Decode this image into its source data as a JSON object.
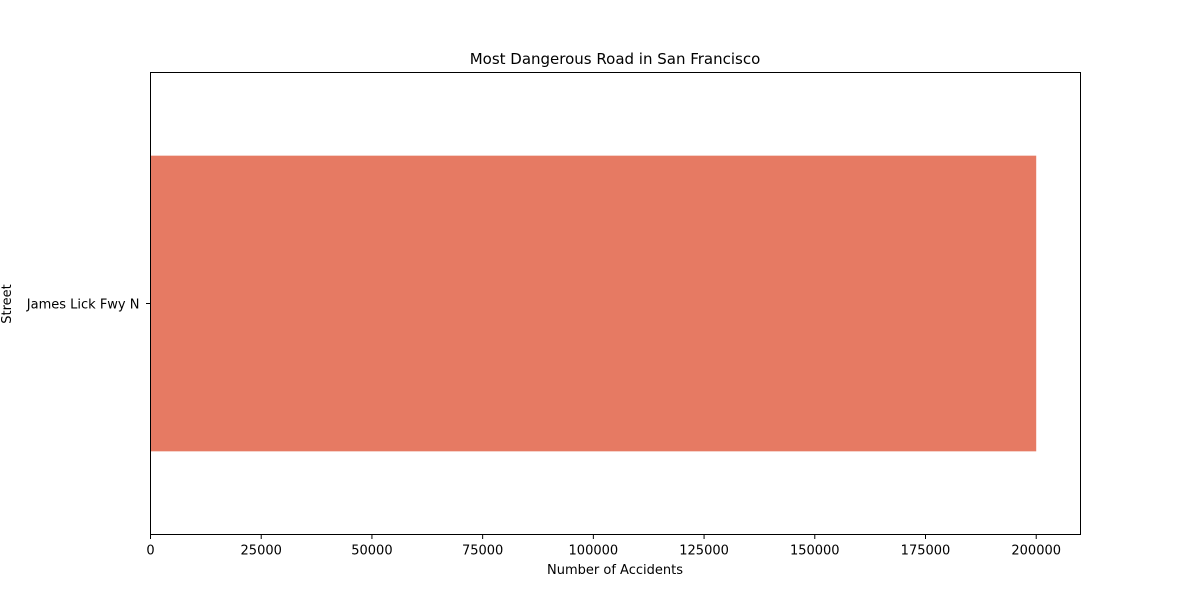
{
  "chart_data": {
    "type": "bar",
    "orientation": "horizontal",
    "title": "Most Dangerous Road in San Francisco",
    "xlabel": "Number of Accidents",
    "ylabel": "Street",
    "categories": [
      "James Lick Fwy N"
    ],
    "values": [
      200000
    ],
    "xlim": [
      0,
      210000
    ],
    "xticks": [
      "0",
      "25000",
      "50000",
      "75000",
      "100000",
      "125000",
      "150000",
      "175000",
      "200000"
    ],
    "grid": false,
    "legend": "none",
    "bar_color": "#e67a63"
  }
}
